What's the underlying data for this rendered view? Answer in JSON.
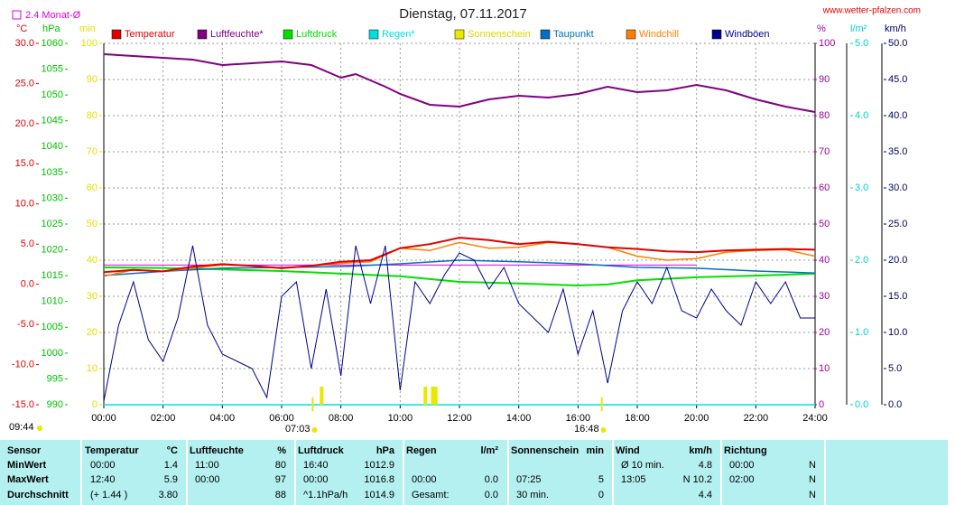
{
  "chart_data": {
    "type": "line",
    "title": "Dienstag, 07.11.2017",
    "source": "www.wetter-pfalzen.com",
    "reference": {
      "label": "2.4 Monat-Ø",
      "value": 2.4,
      "color": "#e000e0",
      "axis": "temp"
    },
    "grid": true,
    "xlim": [
      0,
      24
    ],
    "xticks": [
      {
        "value": 0,
        "label": "00:00"
      },
      {
        "value": 2,
        "label": "02:00"
      },
      {
        "value": 4,
        "label": "04:00"
      },
      {
        "value": 6,
        "label": "06:00"
      },
      {
        "value": 8,
        "label": "08:00"
      },
      {
        "value": 10,
        "label": "10:00"
      },
      {
        "value": 12,
        "label": "12:00"
      },
      {
        "value": 14,
        "label": "14:00"
      },
      {
        "value": 16,
        "label": "16:00"
      },
      {
        "value": 18,
        "label": "18:00"
      },
      {
        "value": 20,
        "label": "20:00"
      },
      {
        "value": 22,
        "label": "22:00"
      },
      {
        "value": 24,
        "label": "24:00"
      }
    ],
    "axes": {
      "temp": {
        "unit": "°C",
        "color": "#e00000",
        "lim": [
          -15,
          30
        ],
        "ticks": [
          {
            "value": -15,
            "label": "-15.0"
          },
          {
            "value": -10,
            "label": "-10.0"
          },
          {
            "value": -5,
            "label": "-5.0"
          },
          {
            "value": 0,
            "label": "0.0"
          },
          {
            "value": 5,
            "label": "5.0"
          },
          {
            "value": 10,
            "label": "10.0"
          },
          {
            "value": 15,
            "label": "15.0"
          },
          {
            "value": 20,
            "label": "20.0"
          },
          {
            "value": 25,
            "label": "25.0"
          },
          {
            "value": 30,
            "label": "30.0"
          }
        ]
      },
      "hpa": {
        "unit": "hPa",
        "color": "#00c000",
        "lim": [
          990,
          1060
        ],
        "ticks": [
          990,
          995,
          1000,
          1005,
          1010,
          1015,
          1020,
          1025,
          1030,
          1035,
          1040,
          1045,
          1050,
          1055,
          1060
        ]
      },
      "min": {
        "unit": "min",
        "color": "#e0e000",
        "lim": [
          0,
          100
        ],
        "ticks": [
          0,
          10,
          20,
          30,
          40,
          50,
          60,
          70,
          80,
          90,
          100
        ]
      },
      "pct": {
        "unit": "%",
        "color": "#a000a0",
        "lim": [
          0,
          100
        ],
        "ticks": [
          0,
          10,
          20,
          30,
          40,
          50,
          60,
          70,
          80,
          90,
          100
        ]
      },
      "rain": {
        "unit": "l/m²",
        "color": "#00d0d0",
        "lim": [
          0,
          5
        ],
        "ticks": [
          {
            "value": 0,
            "label": "0.0"
          },
          {
            "value": 1,
            "label": "1.0"
          },
          {
            "value": 2,
            "label": "2.0"
          },
          {
            "value": 3,
            "label": "3.0"
          },
          {
            "value": 4,
            "label": "4.0"
          },
          {
            "value": 5,
            "label": "5.0"
          }
        ]
      },
      "wind": {
        "unit": "km/h",
        "color": "#000060",
        "lim": [
          0,
          50
        ],
        "ticks": [
          {
            "value": 0,
            "label": "0.0"
          },
          {
            "value": 5,
            "label": "5.0"
          },
          {
            "value": 10,
            "label": "10.0"
          },
          {
            "value": 15,
            "label": "15.0"
          },
          {
            "value": 20,
            "label": "20.0"
          },
          {
            "value": 25,
            "label": "25.0"
          },
          {
            "value": 30,
            "label": "30.0"
          },
          {
            "value": 35,
            "label": "35.0"
          },
          {
            "value": 40,
            "label": "40.0"
          },
          {
            "value": 45,
            "label": "45.0"
          },
          {
            "value": 50,
            "label": "50.0"
          }
        ]
      }
    },
    "series": [
      {
        "name": "Temperatur",
        "color": "#e00000",
        "axis": "temp",
        "x": [
          0,
          1,
          2,
          3,
          4,
          5,
          6,
          7,
          8,
          9,
          10,
          11,
          12,
          13,
          14,
          15,
          16,
          17,
          18,
          19,
          20,
          21,
          22,
          23,
          24
        ],
        "values": [
          1.5,
          1.8,
          1.6,
          2.2,
          2.5,
          2.3,
          2.0,
          2.3,
          2.8,
          3.0,
          4.5,
          5.0,
          5.8,
          5.5,
          5.0,
          5.3,
          5.0,
          4.6,
          4.4,
          4.1,
          4.0,
          4.2,
          4.3,
          4.4,
          4.3
        ]
      },
      {
        "name": "Luftfeuchte*",
        "color": "#800080",
        "axis": "pct",
        "x": [
          0,
          1,
          2,
          3,
          4,
          5,
          6,
          7,
          8,
          8.5,
          9.5,
          10,
          11,
          12,
          13,
          14,
          15,
          16,
          17,
          18,
          19,
          20,
          21,
          22,
          23,
          24
        ],
        "values": [
          97,
          96.5,
          96,
          95.5,
          94,
          94.5,
          95,
          94,
          90.5,
          91.5,
          88,
          86,
          83,
          82.5,
          84.5,
          85.5,
          85,
          86,
          88,
          86.5,
          87,
          88.5,
          87,
          84.5,
          82.5,
          81
        ]
      },
      {
        "name": "Luftdruck",
        "color": "#00e000",
        "axis": "hpa",
        "x": [
          0,
          2,
          4,
          6,
          8,
          10,
          12,
          14,
          16,
          17,
          18,
          20,
          22,
          24
        ],
        "values": [
          1016.6,
          1016.5,
          1016.2,
          1015.9,
          1015.4,
          1014.9,
          1013.8,
          1013.5,
          1013.1,
          1013.3,
          1014.1,
          1014.7,
          1015.0,
          1015.4
        ]
      },
      {
        "name": "Regen*",
        "color": "#00e0e0",
        "axis": "rain",
        "x": [
          0,
          24
        ],
        "values": [
          0,
          0
        ]
      },
      {
        "name": "Sonnenschein",
        "color": "#e8e800",
        "axis": "min",
        "kind": "bar",
        "x": [
          7.35,
          10.85,
          11.1,
          11.2
        ],
        "values": [
          5,
          5,
          5,
          5
        ]
      },
      {
        "name": "Taupunkt",
        "color": "#0070c0",
        "axis": "temp",
        "x": [
          0,
          2,
          4,
          6,
          8,
          10,
          12,
          14,
          16,
          18,
          20,
          22,
          24
        ],
        "values": [
          1.1,
          1.6,
          2.0,
          2.1,
          2.2,
          2.55,
          3.0,
          2.8,
          2.55,
          2.1,
          2.0,
          1.65,
          1.4
        ]
      },
      {
        "name": "Windchill",
        "color": "#ff8000",
        "axis": "temp",
        "x": [
          0,
          1,
          2,
          3,
          4,
          5,
          6,
          7,
          8,
          9,
          10,
          11,
          12,
          13,
          14,
          15,
          16,
          17,
          18,
          19,
          20,
          21,
          22,
          23,
          24
        ],
        "values": [
          1.0,
          1.8,
          1.6,
          2.0,
          2.4,
          2.3,
          2.0,
          2.3,
          2.6,
          2.8,
          4.5,
          4.2,
          5.2,
          4.5,
          4.6,
          5.2,
          5.0,
          4.6,
          3.5,
          3.0,
          3.2,
          4.0,
          4.2,
          4.3,
          3.5
        ]
      },
      {
        "name": "Windböen",
        "color": "#000090",
        "axis": "wind",
        "x": [
          0,
          0.5,
          1,
          1.5,
          2,
          2.5,
          3,
          3.5,
          4,
          4.5,
          5,
          5.5,
          6,
          6.5,
          7,
          7.5,
          8,
          8.5,
          9,
          9.5,
          10,
          10.5,
          11,
          11.5,
          12,
          12.5,
          13,
          13.5,
          14,
          14.5,
          15,
          15.5,
          16,
          16.5,
          17,
          17.5,
          18,
          18.5,
          19,
          19.5,
          20,
          20.5,
          21,
          21.5,
          22,
          22.5,
          23,
          23.5,
          24
        ],
        "values": [
          0.5,
          11,
          17,
          9,
          6,
          12,
          22,
          11,
          7,
          6,
          5,
          1,
          15,
          17,
          5,
          16,
          4,
          22,
          14,
          22,
          2,
          17,
          14,
          18,
          21,
          20,
          16,
          19,
          14,
          12,
          10,
          16,
          7,
          13,
          3,
          13,
          17,
          14,
          19,
          13,
          12,
          16,
          13,
          11,
          17,
          14,
          17,
          12,
          12
        ]
      }
    ],
    "annotations": [
      {
        "label": "09:44"
      },
      {
        "label": "07:03",
        "x": 7.05
      },
      {
        "label": "16:48",
        "x": 16.8
      }
    ]
  },
  "table": {
    "row_labels": [
      "MinWert",
      "MaxWert",
      "Durchschnitt"
    ],
    "columns": [
      {
        "header": "Sensor"
      },
      {
        "header": "Temperatur",
        "unit": "°C",
        "min": {
          "a": "00:00",
          "b": "1.4"
        },
        "max": {
          "a": "12:40",
          "b": "5.9"
        },
        "avg": {
          "a": "(+ 1.44 )",
          "b": "3.80"
        }
      },
      {
        "header": "Luftfeuchte",
        "unit": "%",
        "min": {
          "a": "11:00",
          "b": "80"
        },
        "max": {
          "a": "00:00",
          "b": "97"
        },
        "avg": {
          "b": "88"
        }
      },
      {
        "header": "Luftdruck",
        "unit": "hPa",
        "min": {
          "a": "16:40",
          "b": "1012.9"
        },
        "max": {
          "a": "00:00",
          "b": "1016.8"
        },
        "avg": {
          "a": "^1.1hPa/h",
          "b": "1014.9"
        }
      },
      {
        "header": "Regen",
        "unit": "l/m²",
        "max": {
          "a": "00:00",
          "b": "0.0"
        },
        "avg": {
          "a": "Gesamt:",
          "b": "0.0"
        }
      },
      {
        "header": "Sonnenschein",
        "unit": "min",
        "max": {
          "a": "07:25",
          "b": "5"
        },
        "avg": {
          "a": "30 min.",
          "b": "0"
        }
      },
      {
        "header": "Wind",
        "unit": "km/h",
        "min": {
          "a": "Ø 10 min.",
          "b": "4.8"
        },
        "max": {
          "a": "13:05",
          "b": "N 10.2"
        },
        "avg": {
          "b": "4.4"
        }
      },
      {
        "header": "Richtung",
        "min": {
          "a": "00:00",
          "b": "N"
        },
        "max": {
          "a": "02:00",
          "b": "N"
        },
        "avg": {
          "b": "N"
        }
      }
    ]
  }
}
